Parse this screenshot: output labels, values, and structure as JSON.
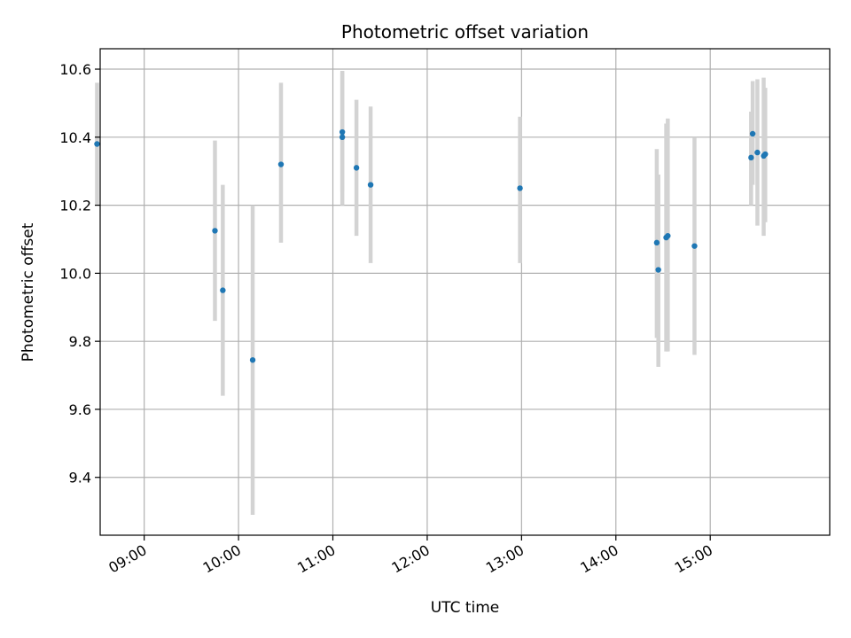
{
  "chart_data": {
    "type": "scatter",
    "title": "Photometric offset variation",
    "xlabel": "UTC time",
    "ylabel": "Photometric offset",
    "x_ticks": [
      "09:00",
      "10:00",
      "11:00",
      "12:00",
      "13:00",
      "14:00",
      "15:00"
    ],
    "y_ticks": [
      "9.4",
      "9.6",
      "9.8",
      "10.0",
      "10.2",
      "10.4",
      "10.6"
    ],
    "xlim": [
      "08:32",
      "16:16"
    ],
    "ylim": [
      9.23,
      10.66
    ],
    "grid": true,
    "marker_color": "#1f77b4",
    "errorbar_color": "#d3d3d3",
    "points": [
      {
        "t": "08:30",
        "y": 10.38,
        "lo": 10.2,
        "hi": 10.56
      },
      {
        "t": "09:45",
        "y": 10.125,
        "lo": 9.86,
        "hi": 10.39
      },
      {
        "t": "09:50",
        "y": 9.95,
        "lo": 9.64,
        "hi": 10.26
      },
      {
        "t": "10:09",
        "y": 9.745,
        "lo": 9.29,
        "hi": 10.2
      },
      {
        "t": "10:27",
        "y": 10.32,
        "lo": 10.09,
        "hi": 10.56
      },
      {
        "t": "11:06",
        "y": 10.415,
        "lo": 10.24,
        "hi": 10.59
      },
      {
        "t": "11:06",
        "y": 10.4,
        "lo": 10.2,
        "hi": 10.595
      },
      {
        "t": "11:15",
        "y": 10.31,
        "lo": 10.11,
        "hi": 10.51
      },
      {
        "t": "11:24",
        "y": 10.26,
        "lo": 10.03,
        "hi": 10.49
      },
      {
        "t": "12:59",
        "y": 10.25,
        "lo": 10.03,
        "hi": 10.46
      },
      {
        "t": "14:26",
        "y": 10.09,
        "lo": 9.81,
        "hi": 10.365
      },
      {
        "t": "14:27",
        "y": 10.01,
        "lo": 9.725,
        "hi": 10.29
      },
      {
        "t": "14:32",
        "y": 10.105,
        "lo": 9.77,
        "hi": 10.44
      },
      {
        "t": "14:33",
        "y": 10.11,
        "lo": 9.77,
        "hi": 10.455
      },
      {
        "t": "14:50",
        "y": 10.08,
        "lo": 9.76,
        "hi": 10.4
      },
      {
        "t": "15:26",
        "y": 10.34,
        "lo": 10.2,
        "hi": 10.475
      },
      {
        "t": "15:27",
        "y": 10.41,
        "lo": 10.26,
        "hi": 10.565
      },
      {
        "t": "15:30",
        "y": 10.355,
        "lo": 10.14,
        "hi": 10.57
      },
      {
        "t": "15:34",
        "y": 10.345,
        "lo": 10.11,
        "hi": 10.575
      },
      {
        "t": "15:35",
        "y": 10.35,
        "lo": 10.15,
        "hi": 10.545
      }
    ]
  }
}
